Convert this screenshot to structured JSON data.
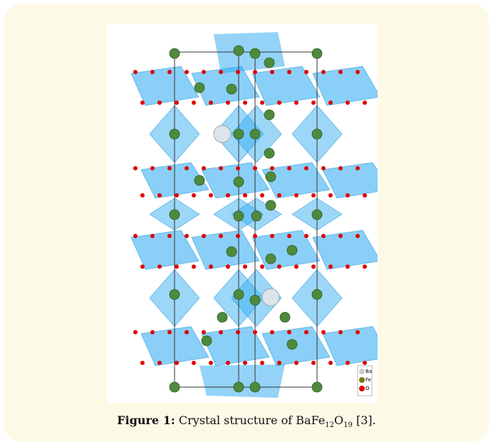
{
  "figure": {
    "label": "Figure 1:",
    "caption_text": "Crystal structure of BaFe",
    "sub_fe": "12",
    "oxygen": "O",
    "sub_o": "19",
    "reference": " [3].",
    "legend": [
      "Ba",
      "Fe",
      "O"
    ]
  }
}
